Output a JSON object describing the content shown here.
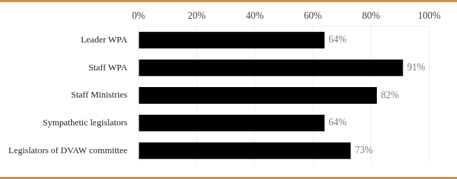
{
  "chart_data": {
    "type": "bar",
    "orientation": "horizontal",
    "categories": [
      "Leader WPA",
      "Staff WPA",
      "Staff Ministries",
      "Sympathetic legislators",
      "Legislators of DVAW committee"
    ],
    "values": [
      64,
      91,
      82,
      64,
      73
    ],
    "value_labels": [
      "64%",
      "91%",
      "82%",
      "64%",
      "73%"
    ],
    "data_labels": true,
    "color": "#000000",
    "xlim": [
      0,
      100
    ],
    "xticks": [
      {
        "value": 0,
        "label": "0%"
      },
      {
        "value": 20,
        "label": "20%"
      },
      {
        "value": 40,
        "label": "40%"
      },
      {
        "value": 60,
        "label": "60%"
      },
      {
        "value": 80,
        "label": "80%"
      },
      {
        "value": 100,
        "label": "100%"
      }
    ],
    "grid": true
  }
}
